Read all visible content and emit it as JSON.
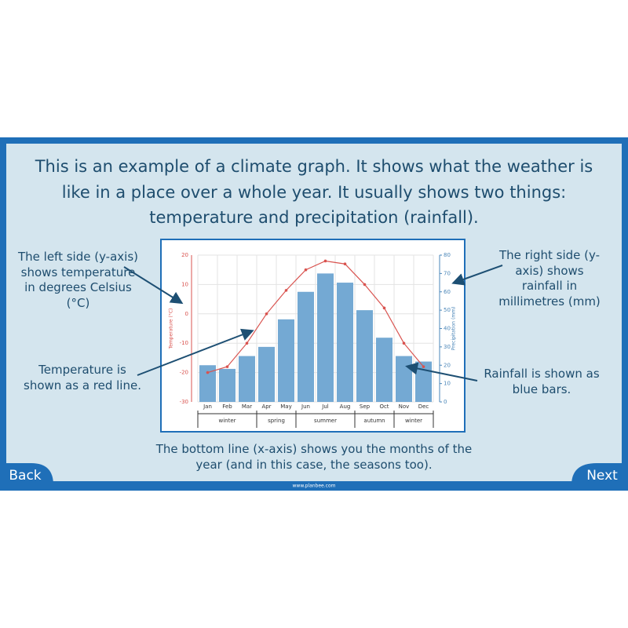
{
  "intro": "This is an example of a climate graph. It shows what the weather is like in a place over a whole year. It usually shows two things: temperature and precipitation (rainfall).",
  "left_axis_note": "The left side (y-axis) shows temperature in degrees Celsius (°C)",
  "temperature_note": "Temperature is shown as a red line.",
  "right_axis_note": "The right side (y-axis) shows rainfall in millimetres (mm)",
  "rainfall_note": "Rainfall is shown as blue bars.",
  "bottom_note": "The bottom line (x-axis) shows you the months of the year (and in this case, the seasons too).",
  "back_button": "Back",
  "next_button": "Next",
  "footer_url": "www.planbee.com",
  "chart_data": {
    "type": "bar",
    "y_label": "Temperature (°C)",
    "y2_label": "Precipitation (mm)",
    "categories": [
      "Jan",
      "Feb",
      "Mar",
      "Apr",
      "May",
      "Jun",
      "Jul",
      "Aug",
      "Sep",
      "Oct",
      "Nov",
      "Dec"
    ],
    "seasons": [
      "winter",
      "spring",
      "summer",
      "autumn",
      "winter"
    ],
    "series": [
      {
        "type": "line",
        "color": "#d9534f",
        "values": [
          -20,
          -18,
          -10,
          0,
          8,
          15,
          18,
          17,
          10,
          2,
          -10,
          -18
        ]
      },
      {
        "type": "bar",
        "axis": "y2",
        "color": "#74a9d3",
        "values": [
          20,
          18,
          25,
          30,
          45,
          60,
          70,
          65,
          50,
          35,
          25,
          22
        ]
      }
    ],
    "ylim": [
      -30,
      20
    ],
    "yticks": [
      -30,
      -20,
      -10,
      0,
      10,
      20
    ],
    "y2lim": [
      0,
      80
    ],
    "y2ticks": [
      0,
      10,
      20,
      30,
      40,
      50,
      60,
      70,
      80
    ],
    "grid": true
  }
}
